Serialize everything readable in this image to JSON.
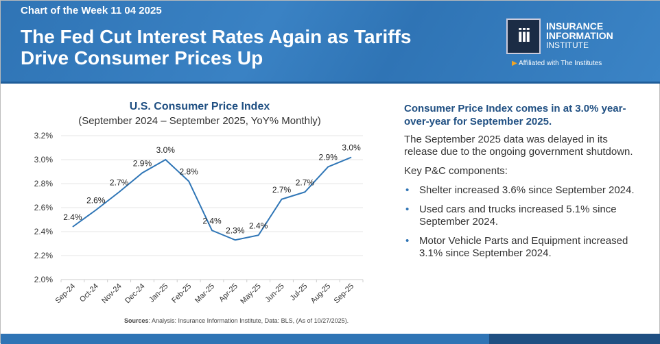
{
  "header": {
    "week_label": "Chart of the Week 11 04 2025",
    "title": "The Fed Cut Interest Rates Again as Tariffs Drive Consumer Prices Up",
    "logo": {
      "mark": "iii",
      "line1": "INSURANCE",
      "line2": "INFORMATION",
      "line3": "INSTITUTE",
      "affiliation": "Affiliated with The Institutes"
    }
  },
  "chart_data": {
    "type": "line",
    "title": "U.S. Consumer Price Index",
    "subtitle": "(September 2024 – September 2025, YoY% Monthly)",
    "categories": [
      "Sep-24",
      "Oct-24",
      "Nov-24",
      "Dec-24",
      "Jan-25",
      "Feb-25",
      "Mar-25",
      "Apr-25",
      "May-25",
      "Jun-25",
      "Jul-25",
      "Aug-25",
      "Sep-25"
    ],
    "values": [
      2.44,
      2.58,
      2.73,
      2.89,
      3.0,
      2.82,
      2.41,
      2.33,
      2.37,
      2.67,
      2.73,
      2.94,
      3.02
    ],
    "data_labels": [
      "2.4%",
      "2.6%",
      "2.7%",
      "2.9%",
      "3.0%",
      "2.8%",
      "2.4%",
      "2.3%",
      "2.4%",
      "2.7%",
      "2.7%",
      "2.9%",
      "3.0%"
    ],
    "ylim": [
      2.0,
      3.2
    ],
    "yticks": [
      "2.0%",
      "2.2%",
      "2.4%",
      "2.6%",
      "2.8%",
      "3.0%",
      "3.2%"
    ],
    "grid": true,
    "line_color": "#2e75b6"
  },
  "source": {
    "label": "Sources",
    "text": ": Analysis: Insurance Information Institute, Data: BLS, (As of 10/27/2025)."
  },
  "right": {
    "heading": "Consumer Price Index comes in at 3.0% year-over-year for September 2025.",
    "para1": "The September 2025 data was delayed in its release due to the ongoing government shutdown.",
    "para2": "Key P&C components:",
    "bullets": [
      "Shelter increased 3.6% since September 2024.",
      "Used cars and trucks increased 5.1% since September 2024.",
      "Motor Vehicle Parts and Equipment increased 3.1% since September 2024."
    ]
  }
}
